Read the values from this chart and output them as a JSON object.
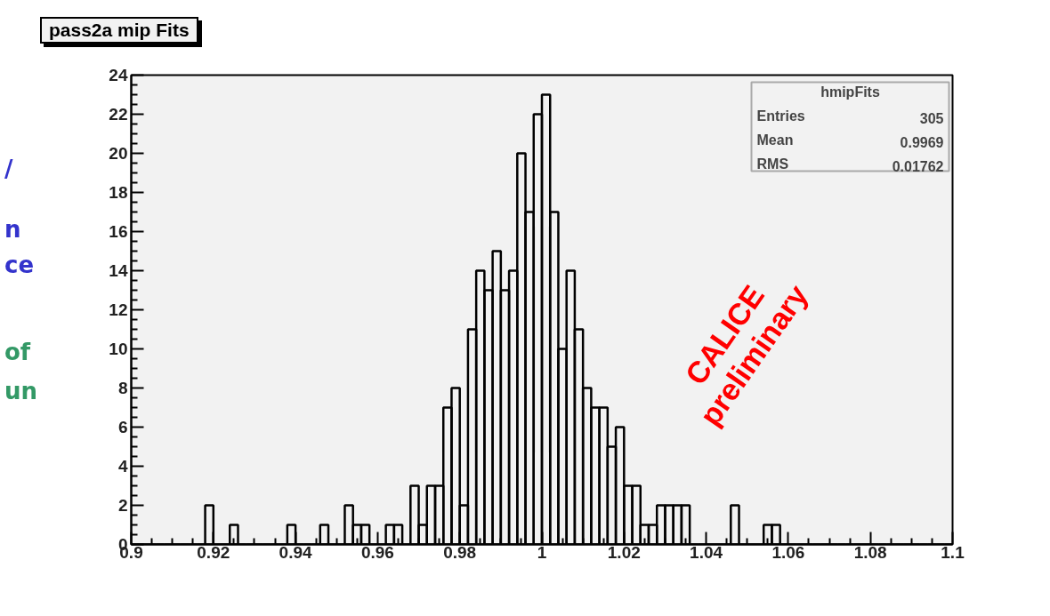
{
  "chart_data": {
    "type": "histogram",
    "title": "pass2a mip Fits",
    "bins": [
      0.9,
      0.902,
      0.904,
      0.906,
      0.908,
      0.91,
      0.912,
      0.914,
      0.916,
      0.918,
      0.92,
      0.922,
      0.924,
      0.926,
      0.928,
      0.93,
      0.932,
      0.934,
      0.936,
      0.938,
      0.94,
      0.942,
      0.944,
      0.946,
      0.948,
      0.95,
      0.952,
      0.954,
      0.956,
      0.958,
      0.96,
      0.962,
      0.964,
      0.966,
      0.968,
      0.97,
      0.972,
      0.974,
      0.976,
      0.978,
      0.98,
      0.982,
      0.984,
      0.986,
      0.988,
      0.99,
      0.992,
      0.994,
      0.996,
      0.998,
      1.0,
      1.002,
      1.004,
      1.006,
      1.008,
      1.01,
      1.012,
      1.014,
      1.016,
      1.018,
      1.02,
      1.022,
      1.024,
      1.026,
      1.028,
      1.03,
      1.032,
      1.034,
      1.036,
      1.038,
      1.04,
      1.042,
      1.044,
      1.046,
      1.048,
      1.05,
      1.052,
      1.054,
      1.056,
      1.058,
      1.06,
      1.062,
      1.064,
      1.066,
      1.068,
      1.07,
      1.072,
      1.074,
      1.076,
      1.078,
      1.08,
      1.082,
      1.084,
      1.086,
      1.088,
      1.09,
      1.092,
      1.094,
      1.096,
      1.098,
      1.1
    ],
    "values": [
      0,
      0,
      0,
      0,
      0,
      0,
      0,
      0,
      0,
      2,
      0,
      0,
      1,
      0,
      0,
      0,
      0,
      0,
      0,
      1,
      0,
      0,
      0,
      1,
      0,
      0,
      2,
      1,
      1,
      0,
      0,
      1,
      1,
      0,
      3,
      1,
      3,
      3,
      7,
      8,
      2,
      11,
      14,
      13,
      15,
      13,
      14,
      20,
      17,
      22,
      23,
      17,
      10,
      14,
      11,
      8,
      7,
      7,
      5,
      6,
      3,
      3,
      1,
      1,
      2,
      2,
      2,
      2,
      0,
      0,
      0,
      0,
      0,
      2,
      0,
      0,
      0,
      1,
      1,
      0,
      0,
      0,
      0,
      0,
      0,
      0,
      0,
      0,
      0,
      0,
      0,
      0,
      0,
      0,
      0,
      0,
      0,
      0,
      0,
      0
    ],
    "color": "#000000",
    "xlim": [
      0.9,
      1.1
    ],
    "xticks": [
      {
        "value": 0.9,
        "label": "0.9"
      },
      0.92,
      0.94,
      0.96,
      0.98,
      {
        "value": 1.0,
        "label": "1"
      },
      1.02,
      1.04,
      1.06,
      1.08,
      {
        "value": 1.1,
        "label": "1.1"
      }
    ],
    "ylim": [
      0,
      24
    ],
    "yticks": [
      0,
      2,
      4,
      6,
      8,
      10,
      12,
      14,
      16,
      18,
      20,
      22,
      24
    ],
    "annotations": [
      "hmipFits",
      "Entries 305",
      "Mean 0.9969",
      "RMS 0.01762",
      "CALICE preliminary",
      "/",
      "n",
      "ce",
      "of",
      "un"
    ]
  }
}
